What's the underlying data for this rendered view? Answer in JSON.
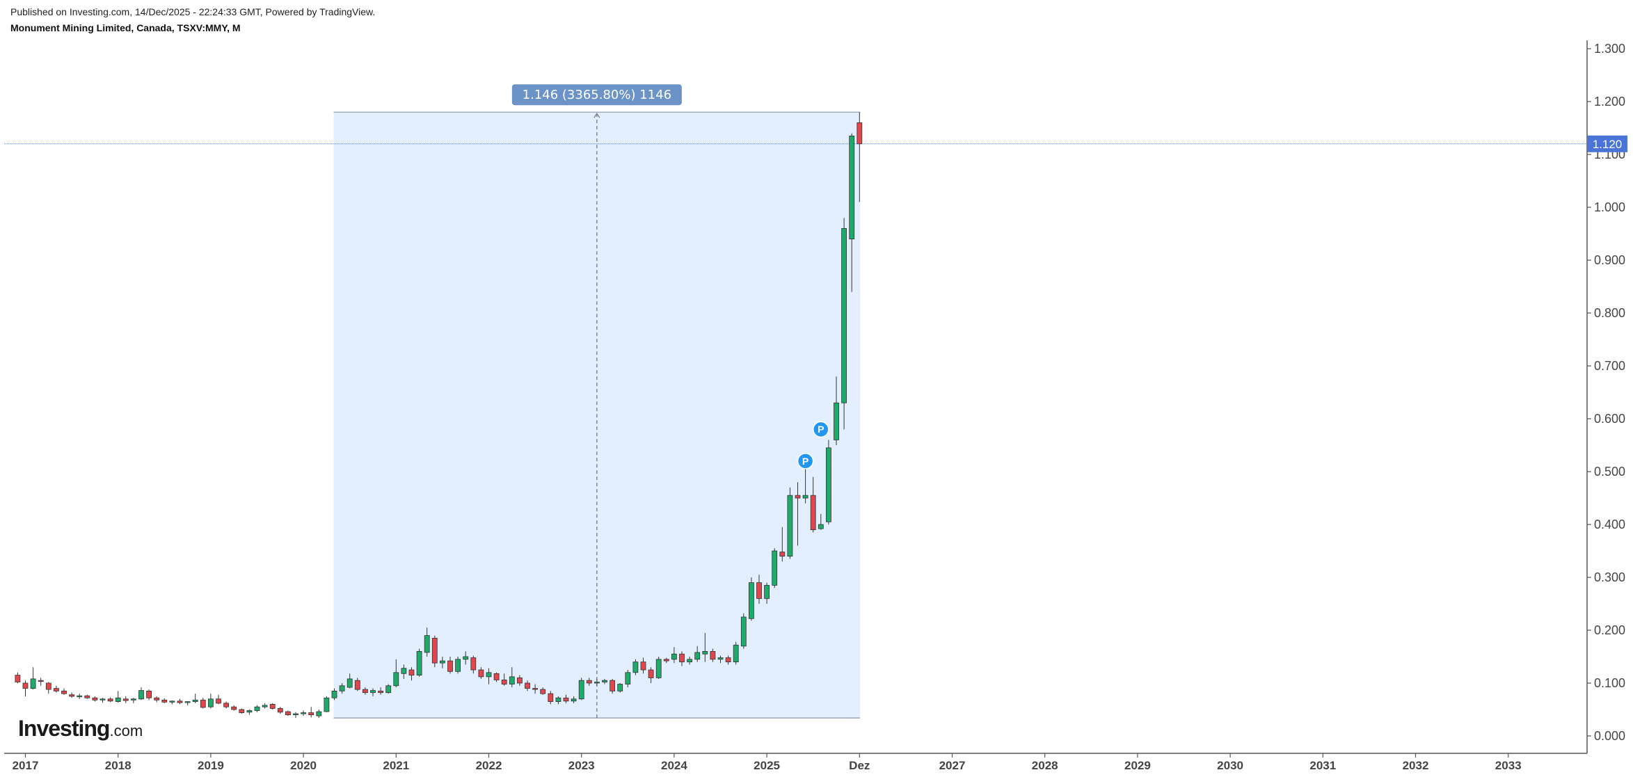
{
  "header": {
    "published": "Published on Investing.com, 14/Dec/2025 - 22:24:33 GMT, Powered by TradingView.",
    "symbol": "Monument Mining Limited, Canada, TSXV:MMY, M"
  },
  "logo": {
    "brand": "Investing",
    "suffix": ".com"
  },
  "colors": {
    "up": "#1faa6a",
    "down": "#e0474c",
    "range_fill": "#e3efff",
    "range_border": "#8a97a8",
    "range_label_bg": "#6b93c8",
    "price_line": "#5a7fd6",
    "price_tag_bg": "#4a74d8",
    "marker": "#2196f3"
  },
  "chart_data": {
    "type": "candlestick",
    "interval": "M",
    "x_tick_labels": [
      "2017",
      "2018",
      "2019",
      "2020",
      "2021",
      "2022",
      "2023",
      "2024",
      "2025",
      "Dez",
      "2027",
      "2028",
      "2029",
      "2030",
      "2031",
      "2032",
      "2033"
    ],
    "y_tick_labels": [
      "0.000",
      "0.100",
      "0.200",
      "0.300",
      "0.400",
      "0.500",
      "0.600",
      "0.700",
      "0.800",
      "0.900",
      "1.000",
      "1.100",
      "1.200",
      "1.300"
    ],
    "ylim": [
      0,
      1.3
    ],
    "grid": false,
    "last_price": 1.12,
    "last_price_label": "1.120",
    "measure": {
      "label": "1.146 (3365.80%) 1146",
      "start": "2020-05",
      "end": "2025-12",
      "low": 0.034,
      "high": 1.18
    },
    "markers": [
      {
        "date": "2025-06",
        "value": 0.52,
        "label": "P"
      },
      {
        "date": "2025-08",
        "value": 0.58,
        "label": "P"
      }
    ],
    "candles": [
      [
        "2016-12",
        0.115,
        0.12,
        0.1,
        0.102
      ],
      [
        "2017-01",
        0.1,
        0.105,
        0.075,
        0.09
      ],
      [
        "2017-02",
        0.09,
        0.13,
        0.088,
        0.108
      ],
      [
        "2017-03",
        0.105,
        0.11,
        0.095,
        0.103
      ],
      [
        "2017-04",
        0.1,
        0.102,
        0.08,
        0.088
      ],
      [
        "2017-05",
        0.09,
        0.095,
        0.082,
        0.085
      ],
      [
        "2017-06",
        0.085,
        0.09,
        0.078,
        0.08
      ],
      [
        "2017-07",
        0.078,
        0.082,
        0.072,
        0.075
      ],
      [
        "2017-08",
        0.075,
        0.08,
        0.07,
        0.076
      ],
      [
        "2017-09",
        0.076,
        0.078,
        0.07,
        0.072
      ],
      [
        "2017-10",
        0.072,
        0.075,
        0.065,
        0.068
      ],
      [
        "2017-11",
        0.068,
        0.072,
        0.063,
        0.07
      ],
      [
        "2017-12",
        0.07,
        0.073,
        0.064,
        0.066
      ],
      [
        "2018-01",
        0.065,
        0.085,
        0.063,
        0.072
      ],
      [
        "2018-02",
        0.07,
        0.075,
        0.062,
        0.067
      ],
      [
        "2018-03",
        0.068,
        0.072,
        0.062,
        0.07
      ],
      [
        "2018-04",
        0.07,
        0.092,
        0.068,
        0.086
      ],
      [
        "2018-05",
        0.085,
        0.088,
        0.068,
        0.072
      ],
      [
        "2018-06",
        0.072,
        0.075,
        0.064,
        0.068
      ],
      [
        "2018-07",
        0.068,
        0.071,
        0.062,
        0.064
      ],
      [
        "2018-08",
        0.064,
        0.067,
        0.06,
        0.066
      ],
      [
        "2018-09",
        0.066,
        0.07,
        0.06,
        0.063
      ],
      [
        "2018-10",
        0.063,
        0.066,
        0.058,
        0.065
      ],
      [
        "2018-11",
        0.065,
        0.08,
        0.062,
        0.068
      ],
      [
        "2018-12",
        0.068,
        0.072,
        0.052,
        0.054
      ],
      [
        "2019-01",
        0.055,
        0.08,
        0.052,
        0.07
      ],
      [
        "2019-02",
        0.07,
        0.078,
        0.06,
        0.062
      ],
      [
        "2019-03",
        0.062,
        0.065,
        0.052,
        0.055
      ],
      [
        "2019-04",
        0.055,
        0.058,
        0.048,
        0.05
      ],
      [
        "2019-05",
        0.05,
        0.052,
        0.042,
        0.044
      ],
      [
        "2019-06",
        0.045,
        0.05,
        0.04,
        0.048
      ],
      [
        "2019-07",
        0.048,
        0.058,
        0.045,
        0.055
      ],
      [
        "2019-08",
        0.055,
        0.062,
        0.052,
        0.058
      ],
      [
        "2019-09",
        0.06,
        0.062,
        0.05,
        0.052
      ],
      [
        "2019-10",
        0.052,
        0.055,
        0.042,
        0.045
      ],
      [
        "2019-11",
        0.046,
        0.048,
        0.038,
        0.04
      ],
      [
        "2019-12",
        0.04,
        0.045,
        0.034,
        0.042
      ],
      [
        "2020-01",
        0.042,
        0.048,
        0.038,
        0.044
      ],
      [
        "2020-02",
        0.044,
        0.055,
        0.035,
        0.04
      ],
      [
        "2020-03",
        0.038,
        0.05,
        0.034,
        0.046
      ],
      [
        "2020-04",
        0.046,
        0.075,
        0.045,
        0.072
      ],
      [
        "2020-05",
        0.072,
        0.09,
        0.068,
        0.085
      ],
      [
        "2020-06",
        0.085,
        0.1,
        0.08,
        0.095
      ],
      [
        "2020-07",
        0.092,
        0.118,
        0.09,
        0.108
      ],
      [
        "2020-08",
        0.105,
        0.11,
        0.085,
        0.088
      ],
      [
        "2020-09",
        0.088,
        0.092,
        0.078,
        0.082
      ],
      [
        "2020-10",
        0.082,
        0.09,
        0.075,
        0.086
      ],
      [
        "2020-11",
        0.085,
        0.092,
        0.078,
        0.082
      ],
      [
        "2020-12",
        0.082,
        0.098,
        0.08,
        0.095
      ],
      [
        "2021-01",
        0.095,
        0.145,
        0.092,
        0.12
      ],
      [
        "2021-02",
        0.118,
        0.135,
        0.108,
        0.128
      ],
      [
        "2021-03",
        0.125,
        0.13,
        0.105,
        0.115
      ],
      [
        "2021-04",
        0.115,
        0.165,
        0.112,
        0.16
      ],
      [
        "2021-05",
        0.158,
        0.205,
        0.15,
        0.19
      ],
      [
        "2021-06",
        0.185,
        0.19,
        0.13,
        0.138
      ],
      [
        "2021-07",
        0.138,
        0.15,
        0.128,
        0.142
      ],
      [
        "2021-08",
        0.142,
        0.15,
        0.118,
        0.122
      ],
      [
        "2021-09",
        0.122,
        0.15,
        0.118,
        0.145
      ],
      [
        "2021-10",
        0.145,
        0.16,
        0.135,
        0.15
      ],
      [
        "2021-11",
        0.148,
        0.152,
        0.118,
        0.125
      ],
      [
        "2021-12",
        0.125,
        0.13,
        0.108,
        0.112
      ],
      [
        "2022-01",
        0.112,
        0.128,
        0.098,
        0.12
      ],
      [
        "2022-02",
        0.118,
        0.12,
        0.102,
        0.106
      ],
      [
        "2022-03",
        0.106,
        0.118,
        0.095,
        0.098
      ],
      [
        "2022-04",
        0.098,
        0.13,
        0.092,
        0.112
      ],
      [
        "2022-05",
        0.11,
        0.115,
        0.095,
        0.1
      ],
      [
        "2022-06",
        0.1,
        0.105,
        0.085,
        0.09
      ],
      [
        "2022-07",
        0.09,
        0.098,
        0.08,
        0.088
      ],
      [
        "2022-08",
        0.088,
        0.092,
        0.078,
        0.08
      ],
      [
        "2022-09",
        0.08,
        0.085,
        0.06,
        0.065
      ],
      [
        "2022-10",
        0.065,
        0.075,
        0.06,
        0.072
      ],
      [
        "2022-11",
        0.072,
        0.078,
        0.062,
        0.066
      ],
      [
        "2022-12",
        0.066,
        0.075,
        0.062,
        0.07
      ],
      [
        "2023-01",
        0.07,
        0.11,
        0.068,
        0.105
      ],
      [
        "2023-02",
        0.105,
        0.11,
        0.095,
        0.1
      ],
      [
        "2023-03",
        0.1,
        0.108,
        0.095,
        0.102
      ],
      [
        "2023-04",
        0.102,
        0.108,
        0.098,
        0.105
      ],
      [
        "2023-05",
        0.105,
        0.108,
        0.08,
        0.085
      ],
      [
        "2023-06",
        0.085,
        0.1,
        0.082,
        0.098
      ],
      [
        "2023-07",
        0.098,
        0.125,
        0.092,
        0.12
      ],
      [
        "2023-08",
        0.12,
        0.145,
        0.115,
        0.14
      ],
      [
        "2023-09",
        0.14,
        0.148,
        0.118,
        0.125
      ],
      [
        "2023-10",
        0.125,
        0.13,
        0.1,
        0.11
      ],
      [
        "2023-11",
        0.11,
        0.15,
        0.108,
        0.145
      ],
      [
        "2023-12",
        0.145,
        0.148,
        0.138,
        0.142
      ],
      [
        "2024-01",
        0.145,
        0.168,
        0.138,
        0.155
      ],
      [
        "2024-02",
        0.155,
        0.16,
        0.132,
        0.14
      ],
      [
        "2024-03",
        0.14,
        0.15,
        0.135,
        0.145
      ],
      [
        "2024-04",
        0.145,
        0.17,
        0.14,
        0.158
      ],
      [
        "2024-05",
        0.155,
        0.195,
        0.14,
        0.16
      ],
      [
        "2024-06",
        0.16,
        0.165,
        0.14,
        0.145
      ],
      [
        "2024-07",
        0.145,
        0.152,
        0.138,
        0.148
      ],
      [
        "2024-08",
        0.148,
        0.152,
        0.135,
        0.14
      ],
      [
        "2024-09",
        0.14,
        0.178,
        0.135,
        0.172
      ],
      [
        "2024-10",
        0.17,
        0.232,
        0.165,
        0.225
      ],
      [
        "2024-11",
        0.222,
        0.3,
        0.218,
        0.29
      ],
      [
        "2024-12",
        0.29,
        0.305,
        0.25,
        0.26
      ],
      [
        "2025-01",
        0.26,
        0.29,
        0.25,
        0.285
      ],
      [
        "2025-02",
        0.285,
        0.355,
        0.28,
        0.35
      ],
      [
        "2025-03",
        0.348,
        0.395,
        0.33,
        0.34
      ],
      [
        "2025-04",
        0.34,
        0.47,
        0.335,
        0.455
      ],
      [
        "2025-05",
        0.455,
        0.48,
        0.36,
        0.45
      ],
      [
        "2025-06",
        0.45,
        0.51,
        0.44,
        0.455
      ],
      [
        "2025-07",
        0.455,
        0.49,
        0.385,
        0.39
      ],
      [
        "2025-08",
        0.392,
        0.42,
        0.39,
        0.4
      ],
      [
        "2025-09",
        0.405,
        0.56,
        0.4,
        0.545
      ],
      [
        "2025-10",
        0.56,
        0.68,
        0.55,
        0.63
      ],
      [
        "2025-11",
        0.63,
        0.98,
        0.58,
        0.96
      ],
      [
        "2025-12",
        0.94,
        1.14,
        0.84,
        1.135
      ],
      [
        "2026-01",
        1.16,
        1.18,
        1.01,
        1.12
      ]
    ]
  }
}
